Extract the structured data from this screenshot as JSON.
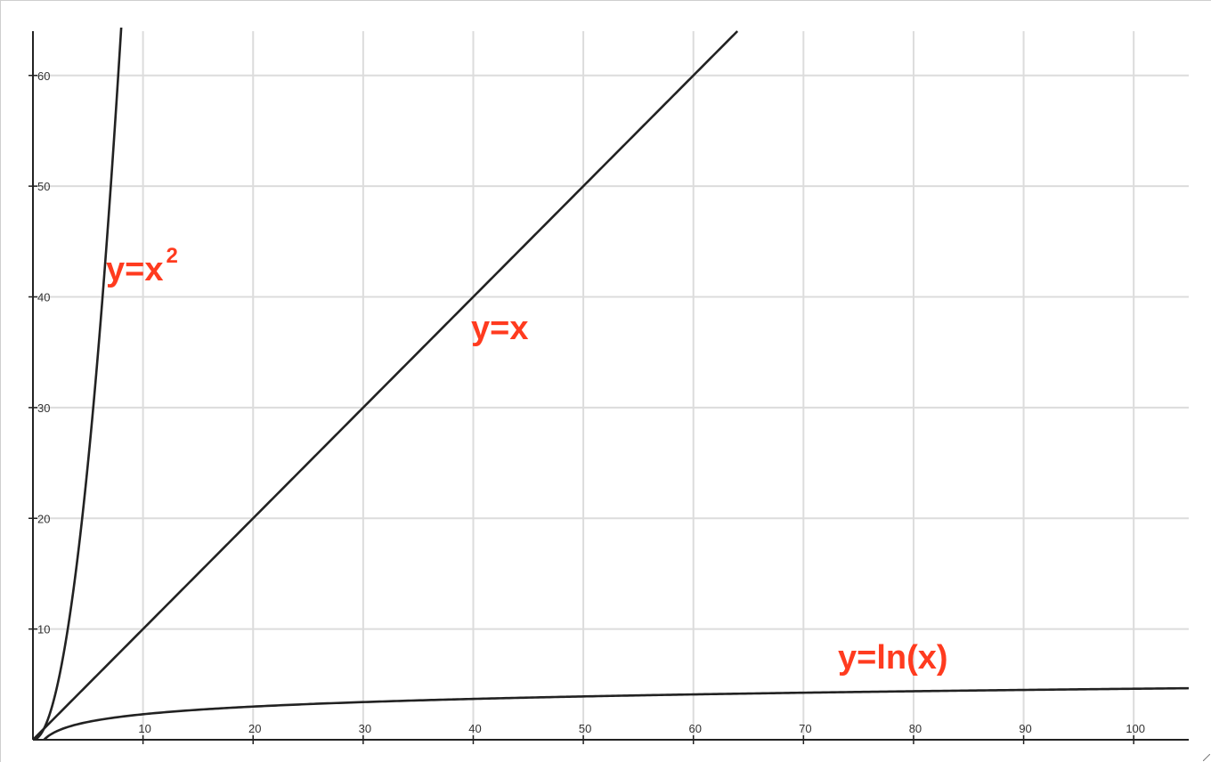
{
  "chart_data": {
    "type": "line",
    "xlim": [
      0,
      105
    ],
    "ylim": [
      0,
      64
    ],
    "x_ticks": [
      10,
      20,
      30,
      40,
      50,
      60,
      70,
      80,
      90,
      100
    ],
    "y_ticks": [
      10,
      20,
      30,
      40,
      50,
      60
    ],
    "grid": true,
    "series": [
      {
        "name": "y=x",
        "x": [
          0,
          64
        ],
        "y": [
          0,
          64
        ]
      },
      {
        "name": "y=x²",
        "x": [
          0,
          1,
          2,
          3,
          4,
          5,
          6,
          7,
          8
        ],
        "y": [
          0,
          1,
          4,
          9,
          16,
          25,
          36,
          49,
          64
        ]
      },
      {
        "name": "y=ln(x)",
        "x": [
          1,
          2,
          5,
          10,
          20,
          30,
          40,
          50,
          60,
          70,
          80,
          90,
          100,
          105
        ],
        "y": [
          0,
          0.693,
          1.609,
          2.303,
          2.996,
          3.401,
          3.689,
          3.912,
          4.094,
          4.248,
          4.382,
          4.5,
          4.605,
          4.654
        ]
      }
    ],
    "annotations": [
      {
        "id": "square",
        "text": "y=x",
        "sup": "2"
      },
      {
        "id": "linear",
        "text": "y=x",
        "sup": ""
      },
      {
        "id": "log",
        "text": "y=ln(x)",
        "sup": ""
      }
    ]
  }
}
